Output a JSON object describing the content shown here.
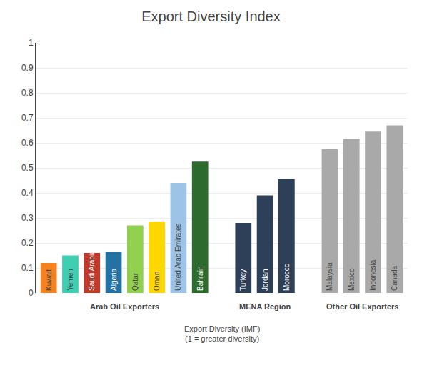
{
  "chart_data": {
    "type": "bar",
    "title": "Export Diversity Index",
    "xlabel": [
      "Export Diversity (IMF)",
      "(1 = greater diversity)"
    ],
    "categories": [
      "Kuwait",
      "Yemen",
      "Saudi Arabia",
      "Algeria",
      "Qatar",
      "Oman",
      "United Arab Emirates",
      "Bahrain",
      "Turkey",
      "Jordan",
      "Morocco",
      "Malaysia",
      "Mexico",
      "Indonesia",
      "Canada"
    ],
    "values": [
      0.12,
      0.15,
      0.16,
      0.165,
      0.27,
      0.285,
      0.44,
      0.525,
      0.28,
      0.39,
      0.455,
      0.575,
      0.615,
      0.645,
      0.67
    ],
    "colors": [
      "#F5821F",
      "#3ECFB2",
      "#C0392B",
      "#2471A3",
      "#92D050",
      "#FFD700",
      "#9DC3E6",
      "#2D6A2D",
      "#2E4057",
      "#2E4057",
      "#2E4057",
      "#A9A9A9",
      "#A9A9A9",
      "#A9A9A9",
      "#A9A9A9"
    ],
    "groups": [
      {
        "name": "Arab Oil Exporters",
        "categories": [
          "Kuwait",
          "Yemen",
          "Saudi Arabia",
          "Algeria",
          "Qatar",
          "Oman",
          "United Arab Emirates",
          "Bahrain"
        ]
      },
      {
        "name": "MENA Region",
        "categories": [
          "Turkey",
          "Jordan",
          "Morocco"
        ]
      },
      {
        "name": "Other Oil Exporters",
        "categories": [
          "Malaysia",
          "Mexico",
          "Indonesia",
          "Canada"
        ]
      }
    ],
    "ylim": [
      0,
      1.0
    ],
    "yticks": [
      0,
      0.1,
      0.2,
      0.3,
      0.4,
      0.5,
      0.6,
      0.7,
      0.8,
      0.9,
      1
    ],
    "grid": true
  }
}
